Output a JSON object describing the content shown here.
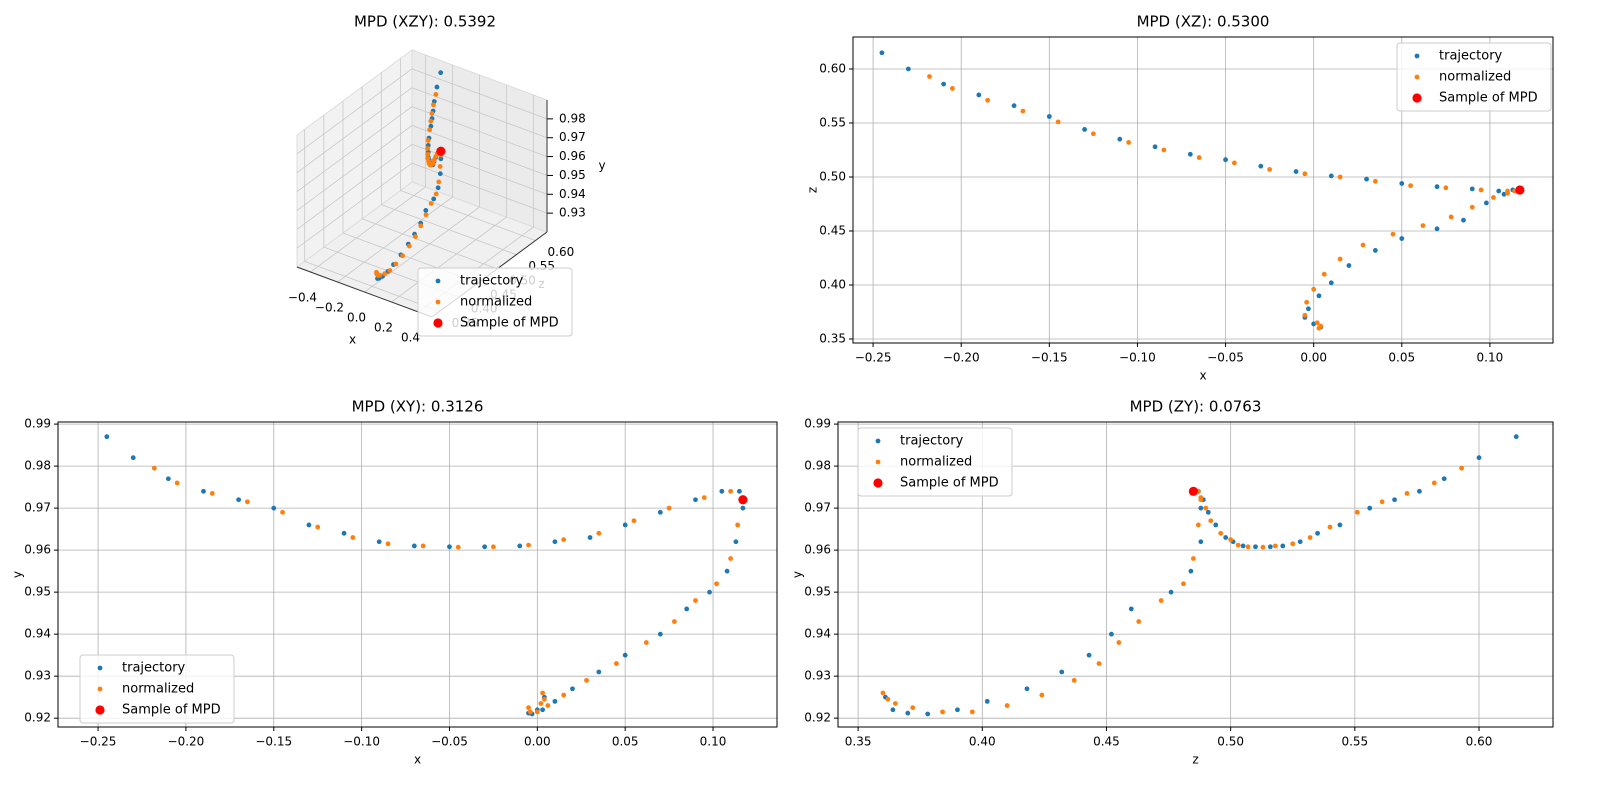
{
  "chart_data": [
    {
      "type": "scatter3d",
      "title": "MPD (XZY): 0.5392",
      "xlabel": "x",
      "ylabel": "y",
      "zlabel": "z",
      "xlim": [
        -0.5,
        0.5
      ],
      "ylim": [
        0.92,
        0.99
      ],
      "zlim": [
        0.33,
        0.63
      ],
      "xticks": [
        {
          "value": -0.4,
          "label": "−0.4"
        },
        {
          "value": -0.2,
          "label": "−0.2"
        },
        {
          "value": 0,
          "label": "0.0"
        },
        0.2,
        0.4
      ],
      "yticks": [
        0.93,
        0.94,
        0.95,
        0.96,
        0.97,
        0.98
      ],
      "zticks": [
        0.35,
        {
          "value": 0.4,
          "label": "0.40"
        },
        0.45,
        {
          "value": 0.5,
          "label": "0.50"
        },
        0.55,
        {
          "value": 0.6,
          "label": "0.60"
        }
      ],
      "grid": true,
      "legend": "lower right",
      "series": [
        {
          "name": "trajectory",
          "color": "#1f77b4",
          "x": [
            -0.245,
            -0.23,
            -0.21,
            -0.19,
            -0.17,
            -0.15,
            -0.13,
            -0.11,
            -0.09,
            -0.07,
            -0.05,
            -0.03,
            -0.01,
            0.01,
            0.03,
            0.05,
            0.07,
            0.09,
            0.105,
            0.115,
            0.117,
            0.113,
            0.108,
            0.098,
            0.085,
            0.07,
            0.05,
            0.035,
            0.02,
            0.01,
            0.003,
            -0.003,
            -0.005,
            0,
            0.004
          ],
          "values": [
            0.987,
            0.982,
            0.977,
            0.974,
            0.972,
            0.97,
            0.966,
            0.964,
            0.962,
            0.961,
            0.9608,
            0.9608,
            0.961,
            0.962,
            0.963,
            0.966,
            0.969,
            0.972,
            0.974,
            0.974,
            0.97,
            0.962,
            0.955,
            0.95,
            0.946,
            0.94,
            0.935,
            0.931,
            0.927,
            0.924,
            0.922,
            0.921,
            0.9212,
            0.922,
            0.925
          ],
          "z": [
            0.615,
            0.6,
            0.586,
            0.576,
            0.566,
            0.556,
            0.544,
            0.535,
            0.528,
            0.521,
            0.516,
            0.51,
            0.505,
            0.501,
            0.498,
            0.494,
            0.491,
            0.489,
            0.487,
            0.487,
            0.488,
            0.488,
            0.484,
            0.476,
            0.46,
            0.452,
            0.443,
            0.432,
            0.418,
            0.402,
            0.39,
            0.378,
            0.37,
            0.364,
            0.361
          ]
        },
        {
          "name": "normalized",
          "color": "#ff7f0e",
          "x": [
            -0.218,
            -0.205,
            -0.185,
            -0.165,
            -0.145,
            -0.125,
            -0.105,
            -0.085,
            -0.065,
            -0.045,
            -0.025,
            -0.005,
            0.015,
            0.035,
            0.055,
            0.075,
            0.095,
            0.11,
            0.116,
            0.114,
            0.11,
            0.102,
            0.09,
            0.078,
            0.062,
            0.045,
            0.028,
            0.015,
            0.006,
            0,
            -0.004,
            -0.005,
            0.002,
            0.004,
            0.003
          ],
          "values": [
            0.9795,
            0.976,
            0.9735,
            0.9715,
            0.969,
            0.9655,
            0.963,
            0.9615,
            0.961,
            0.9607,
            0.9608,
            0.9612,
            0.9625,
            0.964,
            0.967,
            0.97,
            0.9725,
            0.974,
            0.972,
            0.966,
            0.958,
            0.952,
            0.948,
            0.943,
            0.938,
            0.933,
            0.929,
            0.9255,
            0.923,
            0.9215,
            0.9215,
            0.9225,
            0.9235,
            0.9245,
            0.926
          ],
          "z": [
            0.593,
            0.582,
            0.571,
            0.561,
            0.551,
            0.54,
            0.532,
            0.525,
            0.518,
            0.513,
            0.507,
            0.503,
            0.5,
            0.496,
            0.492,
            0.49,
            0.488,
            0.487,
            0.488,
            0.487,
            0.485,
            0.481,
            0.472,
            0.463,
            0.455,
            0.447,
            0.437,
            0.424,
            0.41,
            0.396,
            0.384,
            0.372,
            0.365,
            0.362,
            0.36
          ]
        },
        {
          "name": "Sample of MPD",
          "color": "#ff0000",
          "x": [
            0.117
          ],
          "values": [
            0.974
          ],
          "z": [
            0.488
          ]
        }
      ]
    },
    {
      "type": "scatter",
      "title": "MPD (XZ): 0.5300",
      "xlabel": "x",
      "ylabel": "z",
      "xlim": [
        -0.2614,
        0.1358
      ],
      "ylim": [
        0.3463,
        0.6296
      ],
      "xticks": [
        {
          "value": -0.25,
          "label": "−0.25"
        },
        {
          "value": -0.2,
          "label": "−0.20"
        },
        {
          "value": -0.15,
          "label": "−0.15"
        },
        {
          "value": -0.1,
          "label": "−0.10"
        },
        {
          "value": -0.05,
          "label": "−0.05"
        },
        {
          "value": 0,
          "label": "0.00"
        },
        0.05,
        {
          "value": 0.1,
          "label": "0.10"
        }
      ],
      "yticks": [
        0.35,
        {
          "value": 0.4,
          "label": "0.40"
        },
        0.45,
        {
          "value": 0.5,
          "label": "0.50"
        },
        0.55,
        {
          "value": 0.6,
          "label": "0.60"
        }
      ],
      "grid": true,
      "legend": "upper right",
      "series": [
        {
          "name": "trajectory",
          "color": "#1f77b4",
          "x": [
            -0.245,
            -0.23,
            -0.21,
            -0.19,
            -0.17,
            -0.15,
            -0.13,
            -0.11,
            -0.09,
            -0.07,
            -0.05,
            -0.03,
            -0.01,
            0.01,
            0.03,
            0.05,
            0.07,
            0.09,
            0.105,
            0.115,
            0.117,
            0.113,
            0.108,
            0.098,
            0.085,
            0.07,
            0.05,
            0.035,
            0.02,
            0.01,
            0.003,
            -0.003,
            -0.005,
            0,
            0.004
          ],
          "values": [
            0.615,
            0.6,
            0.586,
            0.576,
            0.566,
            0.556,
            0.544,
            0.535,
            0.528,
            0.521,
            0.516,
            0.51,
            0.505,
            0.501,
            0.498,
            0.494,
            0.491,
            0.489,
            0.487,
            0.487,
            0.488,
            0.488,
            0.484,
            0.476,
            0.46,
            0.452,
            0.443,
            0.432,
            0.418,
            0.402,
            0.39,
            0.378,
            0.37,
            0.364,
            0.361
          ]
        },
        {
          "name": "normalized",
          "color": "#ff7f0e",
          "x": [
            -0.218,
            -0.205,
            -0.185,
            -0.165,
            -0.145,
            -0.125,
            -0.105,
            -0.085,
            -0.065,
            -0.045,
            -0.025,
            -0.005,
            0.015,
            0.035,
            0.055,
            0.075,
            0.095,
            0.11,
            0.116,
            0.114,
            0.11,
            0.102,
            0.09,
            0.078,
            0.062,
            0.045,
            0.028,
            0.015,
            0.006,
            0,
            -0.004,
            -0.005,
            0.002,
            0.004,
            0.003
          ],
          "values": [
            0.593,
            0.582,
            0.571,
            0.561,
            0.551,
            0.54,
            0.532,
            0.525,
            0.518,
            0.513,
            0.507,
            0.503,
            0.5,
            0.496,
            0.492,
            0.49,
            0.488,
            0.487,
            0.488,
            0.487,
            0.485,
            0.481,
            0.472,
            0.463,
            0.455,
            0.447,
            0.437,
            0.424,
            0.41,
            0.396,
            0.384,
            0.372,
            0.365,
            0.362,
            0.36
          ]
        },
        {
          "name": "Sample of MPD",
          "color": "#ff0000",
          "x": [
            0.117
          ],
          "values": [
            0.488
          ]
        }
      ]
    },
    {
      "type": "scatter",
      "title": "MPD (XY): 0.3126",
      "xlabel": "x",
      "ylabel": "y",
      "xlim": [
        -0.2728,
        0.1364
      ],
      "ylim": [
        0.9179,
        0.9905
      ],
      "xticks": [
        {
          "value": -0.25,
          "label": "−0.25"
        },
        {
          "value": -0.2,
          "label": "−0.20"
        },
        {
          "value": -0.15,
          "label": "−0.15"
        },
        {
          "value": -0.1,
          "label": "−0.10"
        },
        {
          "value": -0.05,
          "label": "−0.05"
        },
        {
          "value": 0,
          "label": "0.00"
        },
        0.05,
        {
          "value": 0.1,
          "label": "0.10"
        }
      ],
      "yticks": [
        0.92,
        0.93,
        0.94,
        0.95,
        0.96,
        0.97,
        0.98,
        0.99
      ],
      "grid": true,
      "legend": "lower left",
      "series": [
        {
          "name": "trajectory",
          "color": "#1f77b4",
          "x": [
            -0.245,
            -0.23,
            -0.21,
            -0.19,
            -0.17,
            -0.15,
            -0.13,
            -0.11,
            -0.09,
            -0.07,
            -0.05,
            -0.03,
            -0.01,
            0.01,
            0.03,
            0.05,
            0.07,
            0.09,
            0.105,
            0.115,
            0.117,
            0.113,
            0.108,
            0.098,
            0.085,
            0.07,
            0.05,
            0.035,
            0.02,
            0.01,
            0.003,
            -0.003,
            -0.005,
            0,
            0.004
          ],
          "values": [
            0.987,
            0.982,
            0.977,
            0.974,
            0.972,
            0.97,
            0.966,
            0.964,
            0.962,
            0.961,
            0.9608,
            0.9608,
            0.961,
            0.962,
            0.963,
            0.966,
            0.969,
            0.972,
            0.974,
            0.974,
            0.97,
            0.962,
            0.955,
            0.95,
            0.946,
            0.94,
            0.935,
            0.931,
            0.927,
            0.924,
            0.922,
            0.921,
            0.9212,
            0.922,
            0.925
          ]
        },
        {
          "name": "normalized",
          "color": "#ff7f0e",
          "x": [
            -0.218,
            -0.205,
            -0.185,
            -0.165,
            -0.145,
            -0.125,
            -0.105,
            -0.085,
            -0.065,
            -0.045,
            -0.025,
            -0.005,
            0.015,
            0.035,
            0.055,
            0.075,
            0.095,
            0.11,
            0.116,
            0.114,
            0.11,
            0.102,
            0.09,
            0.078,
            0.062,
            0.045,
            0.028,
            0.015,
            0.006,
            0,
            -0.004,
            -0.005,
            0.002,
            0.004,
            0.003
          ],
          "values": [
            0.9795,
            0.976,
            0.9735,
            0.9715,
            0.969,
            0.9655,
            0.963,
            0.9615,
            0.961,
            0.9607,
            0.9608,
            0.9612,
            0.9625,
            0.964,
            0.967,
            0.97,
            0.9725,
            0.974,
            0.972,
            0.966,
            0.958,
            0.952,
            0.948,
            0.943,
            0.938,
            0.933,
            0.929,
            0.9255,
            0.923,
            0.9215,
            0.9215,
            0.9225,
            0.9235,
            0.9245,
            0.926
          ]
        },
        {
          "name": "Sample of MPD",
          "color": "#ff0000",
          "x": [
            0.117
          ],
          "values": [
            0.972
          ]
        }
      ]
    },
    {
      "type": "scatter",
      "title": "MPD (ZY): 0.0763",
      "xlabel": "z",
      "ylabel": "y",
      "xlim": [
        0.3419,
        0.6298
      ],
      "ylim": [
        0.9179,
        0.9905
      ],
      "xticks": [
        0.35,
        {
          "value": 0.4,
          "label": "0.40"
        },
        0.45,
        {
          "value": 0.5,
          "label": "0.50"
        },
        0.55,
        {
          "value": 0.6,
          "label": "0.60"
        }
      ],
      "yticks": [
        0.92,
        0.93,
        0.94,
        0.95,
        0.96,
        0.97,
        0.98,
        0.99
      ],
      "grid": true,
      "legend": "upper left",
      "series": [
        {
          "name": "trajectory",
          "color": "#1f77b4",
          "x": [
            0.615,
            0.6,
            0.586,
            0.576,
            0.566,
            0.556,
            0.544,
            0.535,
            0.528,
            0.521,
            0.516,
            0.51,
            0.505,
            0.501,
            0.498,
            0.494,
            0.491,
            0.489,
            0.487,
            0.487,
            0.488,
            0.488,
            0.484,
            0.476,
            0.46,
            0.452,
            0.443,
            0.432,
            0.418,
            0.402,
            0.39,
            0.378,
            0.37,
            0.364,
            0.361
          ],
          "values": [
            0.987,
            0.982,
            0.977,
            0.974,
            0.972,
            0.97,
            0.966,
            0.964,
            0.962,
            0.961,
            0.9608,
            0.9608,
            0.961,
            0.962,
            0.963,
            0.966,
            0.969,
            0.972,
            0.974,
            0.974,
            0.97,
            0.962,
            0.955,
            0.95,
            0.946,
            0.94,
            0.935,
            0.931,
            0.927,
            0.924,
            0.922,
            0.921,
            0.9212,
            0.922,
            0.925
          ]
        },
        {
          "name": "normalized",
          "color": "#ff7f0e",
          "x": [
            0.593,
            0.582,
            0.571,
            0.561,
            0.551,
            0.54,
            0.532,
            0.525,
            0.518,
            0.513,
            0.507,
            0.503,
            0.5,
            0.496,
            0.492,
            0.49,
            0.488,
            0.487,
            0.488,
            0.487,
            0.485,
            0.481,
            0.472,
            0.463,
            0.455,
            0.447,
            0.437,
            0.424,
            0.41,
            0.396,
            0.384,
            0.372,
            0.365,
            0.362,
            0.36
          ],
          "values": [
            0.9795,
            0.976,
            0.9735,
            0.9715,
            0.969,
            0.9655,
            0.963,
            0.9615,
            0.961,
            0.9607,
            0.9608,
            0.9612,
            0.9625,
            0.964,
            0.967,
            0.97,
            0.9725,
            0.974,
            0.972,
            0.966,
            0.958,
            0.952,
            0.948,
            0.943,
            0.938,
            0.933,
            0.929,
            0.9255,
            0.923,
            0.9215,
            0.9215,
            0.9225,
            0.9235,
            0.9245,
            0.926
          ]
        },
        {
          "name": "Sample of MPD",
          "color": "#ff0000",
          "x": [
            0.485
          ],
          "values": [
            0.974
          ]
        }
      ]
    }
  ]
}
